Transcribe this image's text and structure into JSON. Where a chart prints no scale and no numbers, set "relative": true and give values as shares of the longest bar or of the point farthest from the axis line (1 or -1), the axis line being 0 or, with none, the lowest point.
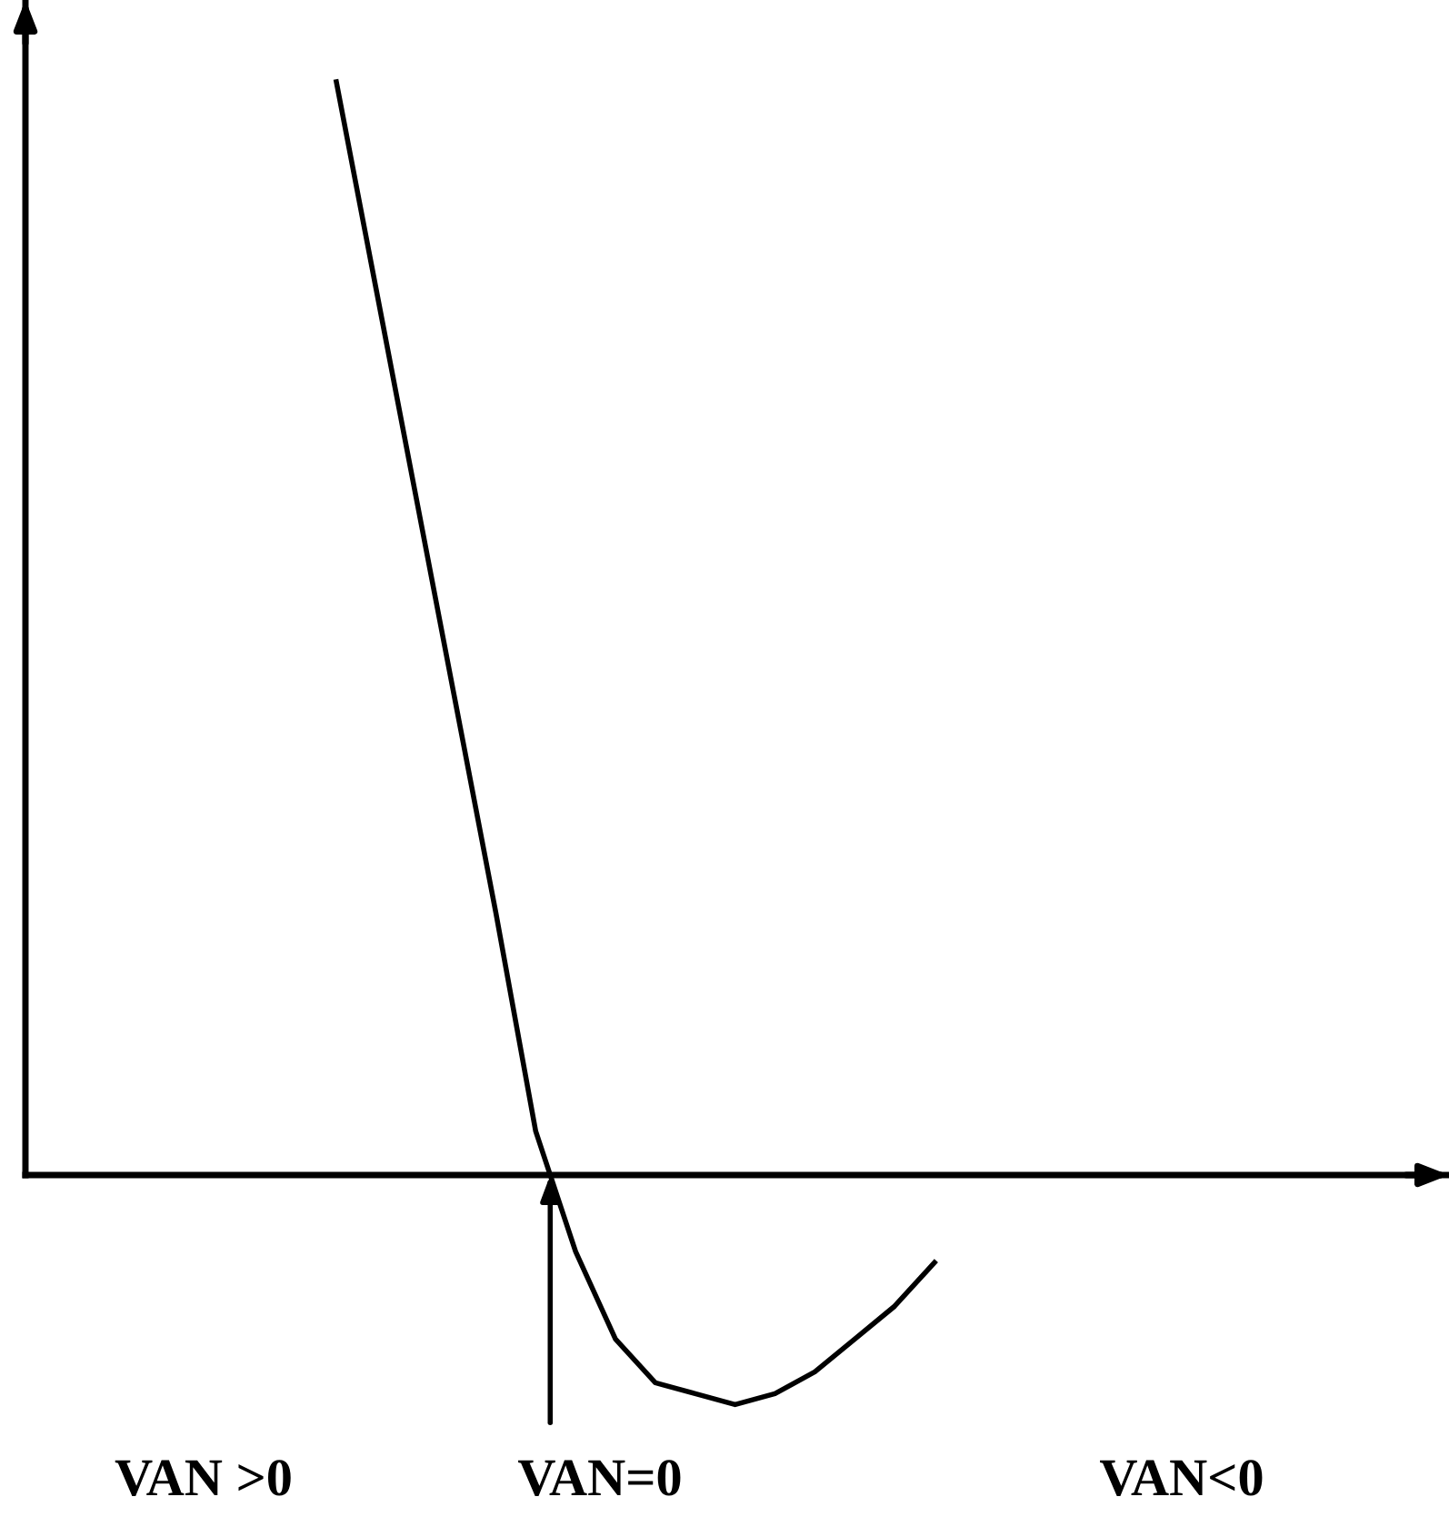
{
  "chart_data": {
    "type": "line",
    "relative": true,
    "categories": [
      null,
      null,
      null,
      null,
      null,
      null,
      null,
      null,
      null,
      null,
      null,
      null,
      null,
      null,
      null,
      null
    ],
    "series": [
      {
        "color": "#000000",
        "values": [
          1.0,
          0.81,
          0.62,
          0.43,
          0.24,
          0.04,
          -0.07,
          -0.15,
          -0.19,
          -0.2,
          -0.21,
          -0.2,
          -0.18,
          -0.15,
          -0.12,
          -0.08
        ]
      }
    ],
    "annotations": [
      "VAN >0",
      "VAN=0",
      "VAN<0"
    ]
  }
}
